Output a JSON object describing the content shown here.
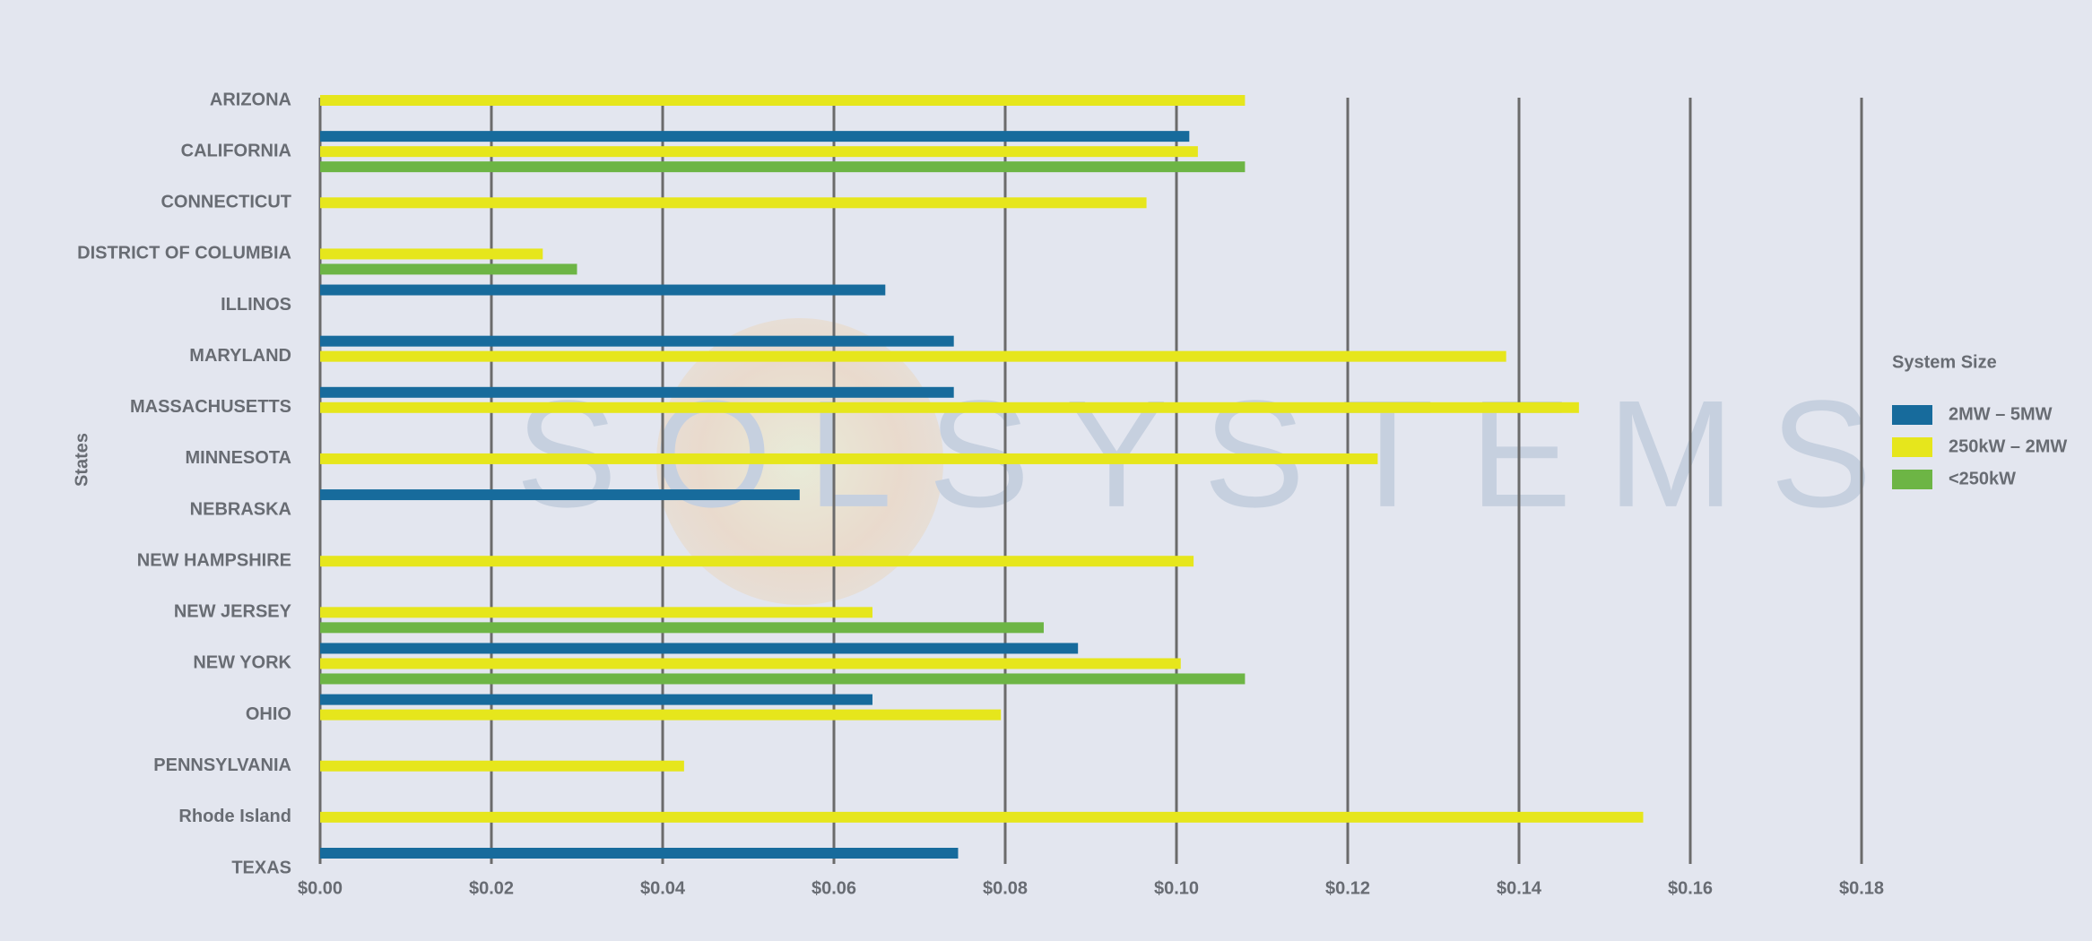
{
  "chart_data": {
    "type": "bar",
    "orientation": "horizontal",
    "y_label": "States",
    "watermark": "SOLSYSTEMS",
    "legend_title": "System Size",
    "legend": "right",
    "grid": true,
    "categories": [
      "ARIZONA",
      "CALIFORNIA",
      "CONNECTICUT",
      "DISTRICT OF COLUMBIA",
      "ILLINOS",
      "MARYLAND",
      "MASSACHUSETTS",
      "MINNESOTA",
      "NEBRASKA",
      "NEW HAMPSHIRE",
      "NEW JERSEY",
      "NEW YORK",
      "OHIO",
      "PENNSYLVANIA",
      "Rhode Island",
      "TEXAS"
    ],
    "series": [
      {
        "name": "2MW – 5MW",
        "color": "#176b9c",
        "values": [
          null,
          0.1015,
          null,
          null,
          0.066,
          0.074,
          0.074,
          null,
          0.056,
          null,
          null,
          0.0885,
          0.0645,
          null,
          null,
          0.0745
        ]
      },
      {
        "name": "250kW – 2MW",
        "color": "#e6e61c",
        "values": [
          0.108,
          0.1025,
          0.0965,
          0.026,
          null,
          0.1385,
          0.147,
          0.1235,
          null,
          0.102,
          0.0645,
          0.1005,
          0.0795,
          0.0425,
          0.1545,
          null
        ]
      },
      {
        "name": "<250kW",
        "color": "#6db545",
        "values": [
          null,
          0.108,
          null,
          0.03,
          null,
          null,
          null,
          null,
          null,
          null,
          0.0845,
          0.108,
          null,
          null,
          null,
          null
        ]
      }
    ],
    "xlim": [
      0,
      0.18
    ],
    "xticks": [
      {
        "value": 0,
        "label": "$0.00"
      },
      {
        "value": 0.02,
        "label": "$0.02"
      },
      {
        "value": 0.04,
        "label": "$0.04"
      },
      {
        "value": 0.06,
        "label": "$0.06"
      },
      {
        "value": 0.08,
        "label": "$0.08"
      },
      {
        "value": 0.1,
        "label": "$0.10"
      },
      {
        "value": 0.12,
        "label": "$0.12"
      },
      {
        "value": 0.14,
        "label": "$0.14"
      },
      {
        "value": 0.16,
        "label": "$0.16"
      },
      {
        "value": 0.18,
        "label": "$0.18"
      }
    ]
  }
}
